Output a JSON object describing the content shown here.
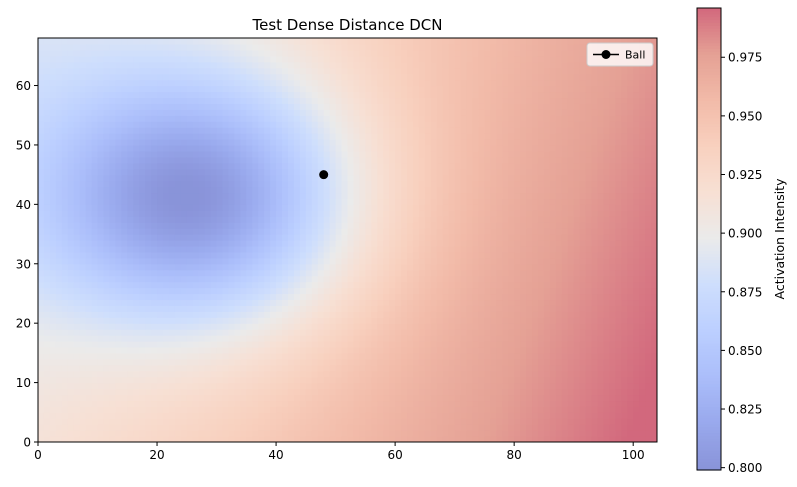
{
  "chart_data": {
    "type": "heatmap",
    "title": "Test Dense Distance DCN",
    "xlabel": "",
    "ylabel": "",
    "xlim": [
      0,
      104
    ],
    "ylim": [
      0,
      68
    ],
    "xticks": [
      0,
      20,
      40,
      60,
      80,
      100
    ],
    "yticks": [
      0,
      10,
      20,
      30,
      40,
      50,
      60
    ],
    "colormap": "coolwarm",
    "colormap_alpha": 0.6,
    "value_range": [
      0.8,
      0.996
    ],
    "field": {
      "description_key": "activation",
      "minimum": {
        "x": 27,
        "y": 41,
        "value": 0.8
      },
      "maximum": {
        "x": 104,
        "y": 0,
        "value": 0.996
      }
    },
    "point": {
      "x": 48,
      "y": 45,
      "color": "#000000"
    },
    "legend": {
      "position": "top-right",
      "entries": [
        {
          "label": "Ball",
          "marker": "circle-line",
          "color": "#000000"
        }
      ]
    },
    "colorbar": {
      "label": "Activation Intensity",
      "range": [
        0.799,
        0.996
      ],
      "ticks": [
        0.8,
        0.825,
        0.85,
        0.875,
        0.9,
        0.925,
        0.95,
        0.975
      ],
      "tick_labels": [
        "0.800",
        "0.825",
        "0.850",
        "0.875",
        "0.900",
        "0.925",
        "0.950",
        "0.975"
      ]
    },
    "grid": false
  }
}
